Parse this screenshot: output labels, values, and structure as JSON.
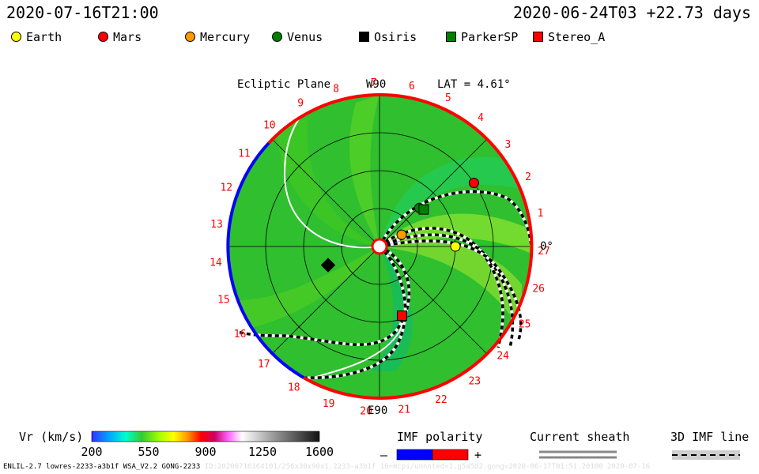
{
  "header": {
    "date_left": "2020-07-16T21:00",
    "date_right": "2020-06-24T03 +22.73 days"
  },
  "legend": [
    {
      "label": "Earth",
      "color": "#ffff00",
      "shape": "circle"
    },
    {
      "label": "Mars",
      "color": "#ff0000",
      "shape": "circle"
    },
    {
      "label": "Mercury",
      "color": "#ff9900",
      "shape": "circle"
    },
    {
      "label": "Venus",
      "color": "#008000",
      "shape": "circle"
    },
    {
      "label": "Osiris",
      "color": "#000000",
      "shape": "square"
    },
    {
      "label": "ParkerSP",
      "color": "#008000",
      "shape": "square"
    },
    {
      "label": "Stereo_A",
      "color": "#ff0000",
      "shape": "square"
    }
  ],
  "plot": {
    "title": "Ecliptic Plane",
    "top_label": "W90",
    "bottom_label": "E90",
    "right_label": "0°",
    "lat_label": "LAT = 4.61°",
    "carrington_ticks": [
      "1",
      "2",
      "3",
      "4",
      "5",
      "6",
      "7",
      "8",
      "9",
      "10",
      "11",
      "12",
      "13",
      "14",
      "15",
      "16",
      "17",
      "18",
      "19",
      "20",
      "21",
      "22",
      "23",
      "24",
      "25",
      "26",
      "27"
    ]
  },
  "chart_data": {
    "type": "polar-heatmap",
    "quantity": "Vr (km/s)",
    "colorbar": {
      "min": 200,
      "max": 1600,
      "ticks": [
        200,
        550,
        900,
        1250,
        1600
      ]
    },
    "bodies": [
      {
        "name": "Earth",
        "r_au": 1.0,
        "angle_deg": 0
      },
      {
        "name": "Mars",
        "r_au": 1.5,
        "angle_deg": 34
      },
      {
        "name": "Mercury",
        "r_au": 0.33,
        "angle_deg": 28
      },
      {
        "name": "Venus",
        "r_au": 0.73,
        "angle_deg": 44
      },
      {
        "name": "Osiris",
        "r_au": 0.72,
        "angle_deg": -160
      },
      {
        "name": "ParkerSP",
        "r_au": 0.76,
        "angle_deg": 40
      },
      {
        "name": "Stereo_A",
        "r_au": 0.96,
        "angle_deg": -72
      }
    ],
    "polarity_on_edge": {
      "positive": "red",
      "negative": "blue"
    }
  },
  "bottom": {
    "vr_label": "Vr (km/s)",
    "imf_title": "IMF polarity",
    "imf_minus": "–",
    "imf_plus": "+",
    "sheath_title": "Current sheath",
    "imf3d_title": "3D IMF line",
    "footer": "ENLIL-2.7 lowres-2233-a3b1f WSA_V2.2 GONG-2233",
    "footer_faint": "ID:20200716164101/256x30x90x1.2233-a3b1f 16=mcpi/unnnted=1,g5a5d2.gong=2020-06-17T01:51.20100    2020-07-16"
  },
  "colors": {
    "field_green": "#33cc33",
    "light_green": "#7fdf2f",
    "polarity_red": "#ff0000",
    "polarity_blue": "#0000ff"
  }
}
